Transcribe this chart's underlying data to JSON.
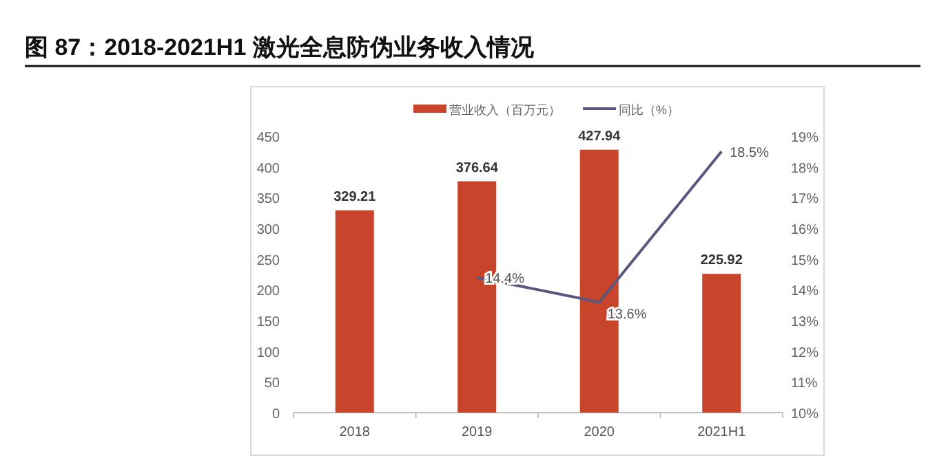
{
  "chart_data": {
    "type": "bar",
    "title": "图 87：2018-2021H1 激光全息防伪业务收入情况",
    "categories": [
      "2018",
      "2019",
      "2020",
      "2021H1"
    ],
    "series": [
      {
        "name": "营业收入（百万元）",
        "color": "#c8442a",
        "values": [
          329.21,
          376.64,
          427.94,
          225.92
        ],
        "value_labels": [
          "329.21",
          "376.64",
          "427.94",
          "225.92"
        ]
      },
      {
        "name": "同比（%）",
        "type": "line",
        "axis": "y2",
        "color": "#5b5780",
        "values": [
          null,
          14.4,
          13.6,
          18.5
        ],
        "value_labels": [
          null,
          "14.4%",
          "13.6%",
          "18.5%"
        ]
      }
    ],
    "ylim": [
      0,
      450
    ],
    "yticks": [
      0,
      50,
      100,
      150,
      200,
      250,
      300,
      350,
      400,
      450
    ],
    "y2lim": [
      10,
      19
    ],
    "y2ticks": [
      {
        "value": 10,
        "label": "10%"
      },
      {
        "value": 11,
        "label": "11%"
      },
      {
        "value": 12,
        "label": "12%"
      },
      {
        "value": 13,
        "label": "13%"
      },
      {
        "value": 14,
        "label": "14%"
      },
      {
        "value": 15,
        "label": "15%"
      },
      {
        "value": 16,
        "label": "16%"
      },
      {
        "value": 17,
        "label": "17%"
      },
      {
        "value": 18,
        "label": "18%"
      },
      {
        "value": 19,
        "label": "19%"
      }
    ],
    "grid": false,
    "legend": "top",
    "marker": "none",
    "line_style": "solid"
  }
}
